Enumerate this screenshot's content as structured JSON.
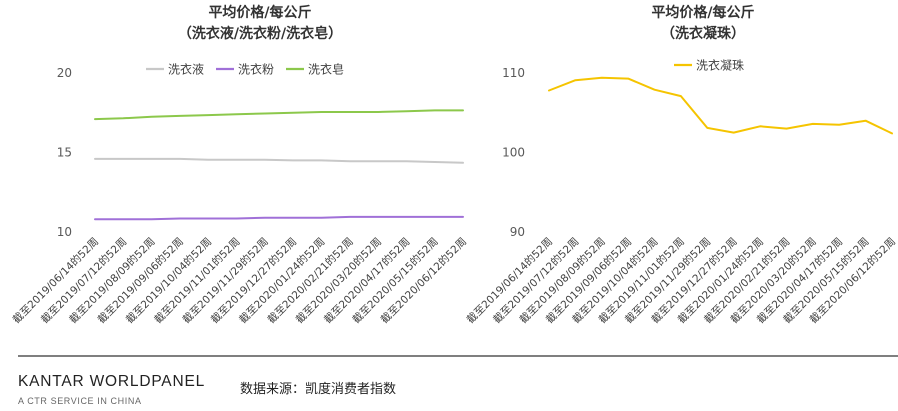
{
  "footer": {
    "logo_main": "KANTAR WORLDPANEL",
    "logo_sub": "A CTR SERVICE IN CHINA",
    "source": "数据来源：凯度消费者指数"
  },
  "chart_data": [
    {
      "type": "line",
      "title_line1": "平均价格/每公斤",
      "title_line2": "（洗衣液/洗衣粉/洗衣皂）",
      "categories": [
        "截至2019/06/14的52周",
        "截至2019/07/12的52周",
        "截至2019/08/09的52周",
        "截至2019/09/06的52周",
        "截至2019/10/04的52周",
        "截至2019/11/01的52周",
        "截至2019/11/29的52周",
        "截至2019/12/27的52周",
        "截至2020/01/24的52周",
        "截至2020/02/21的52周",
        "截至2020/03/20的52周",
        "截至2020/04/17的52周",
        "截至2020/05/15的52周",
        "截至2020/06/12的52周"
      ],
      "ylim": [
        10,
        20
      ],
      "yticks": [
        10,
        15,
        20
      ],
      "grid": false,
      "legend": "top",
      "series": [
        {
          "name": "洗衣液",
          "color": "#c8c8c8",
          "values": [
            14.6,
            14.6,
            14.6,
            14.6,
            14.55,
            14.55,
            14.55,
            14.5,
            14.5,
            14.45,
            14.45,
            14.45,
            14.4,
            14.35
          ]
        },
        {
          "name": "洗衣粉",
          "color": "#a070d8",
          "values": [
            10.8,
            10.8,
            10.8,
            10.85,
            10.85,
            10.85,
            10.9,
            10.9,
            10.9,
            10.95,
            10.95,
            10.95,
            10.95,
            10.95
          ]
        },
        {
          "name": "洗衣皂",
          "color": "#8cc84b",
          "values": [
            17.1,
            17.15,
            17.25,
            17.3,
            17.35,
            17.4,
            17.45,
            17.5,
            17.55,
            17.55,
            17.55,
            17.6,
            17.65,
            17.65
          ]
        }
      ]
    },
    {
      "type": "line",
      "title_line1": "平均价格/每公斤",
      "title_line2": "（洗衣凝珠）",
      "categories": [
        "截至2019/06/14的52周",
        "截至2019/07/12的52周",
        "截至2019/08/09的52周",
        "截至2019/09/06的52周",
        "截至2019/10/04的52周",
        "截至2019/11/01的52周",
        "截至2019/11/29的52周",
        "截至2019/12/27的52周",
        "截至2020/01/24的52周",
        "截至2020/02/21的52周",
        "截至2020/03/20的52周",
        "截至2020/04/17的52周",
        "截至2020/05/15的52周",
        "截至2020/06/12的52周"
      ],
      "ylim": [
        90,
        110
      ],
      "yticks": [
        90,
        100,
        110
      ],
      "grid": false,
      "legend": "top",
      "series": [
        {
          "name": "洗衣凝珠",
          "color": "#f5c400",
          "values": [
            107.8,
            109.1,
            109.4,
            109.3,
            107.9,
            107.1,
            103.1,
            102.5,
            103.3,
            103.0,
            103.6,
            103.5,
            104.0,
            102.4
          ]
        }
      ]
    }
  ]
}
